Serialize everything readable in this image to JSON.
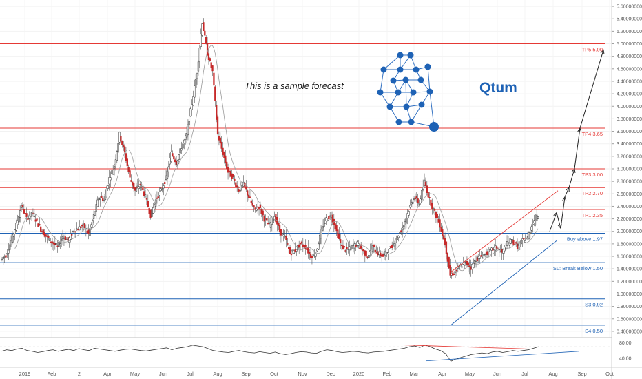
{
  "chart_data": {
    "type": "candlestick",
    "annotation": "This is a sample forecast",
    "logo_text": "Qtum",
    "y_ticks": [
      "0.40000000",
      "0.60000000",
      "0.80000000",
      "1.00000000",
      "1.20000000",
      "1.40000000",
      "1.60000000",
      "1.80000000",
      "2.00000000",
      "2.20000000",
      "2.40000000",
      "2.60000000",
      "2.80000000",
      "3.00000000",
      "3.20000000",
      "3.40000000",
      "3.60000000",
      "3.80000000",
      "4.00000000",
      "4.20000000",
      "4.40000000",
      "4.60000000",
      "4.80000000",
      "5.00000000",
      "5.20000000",
      "5.40000000",
      "5.60000000"
    ],
    "ylim": [
      0.3,
      5.7
    ],
    "x_ticks": [
      "2019",
      "Feb",
      "2",
      "Apr",
      "May",
      "Jun",
      "Jul",
      "Aug",
      "Sep",
      "Oct",
      "Nov",
      "Dec",
      "2020",
      "Feb",
      "Mar",
      "Apr",
      "May",
      "Jun",
      "Jul",
      "Aug",
      "Sep",
      "Oct"
    ],
    "levels": [
      {
        "label": "TP5 5.00",
        "value": 5.0,
        "color": "#e53935"
      },
      {
        "label": "TP4 3.65",
        "value": 3.65,
        "color": "#e53935"
      },
      {
        "label": "TP3 3.00",
        "value": 3.0,
        "color": "#e53935"
      },
      {
        "label": "TP2 2.70",
        "value": 2.7,
        "color": "#e53935"
      },
      {
        "label": "TP1 2.35",
        "value": 2.35,
        "color": "#e53935"
      },
      {
        "label": "Buy above 1.97",
        "value": 1.97,
        "color": "#1e62b5"
      },
      {
        "label": "SL: Break Below 1.50",
        "value": 1.5,
        "color": "#1e62b5"
      },
      {
        "label": "S3 0.92",
        "value": 0.92,
        "color": "#1e62b5"
      },
      {
        "label": "S4 0.50",
        "value": 0.5,
        "color": "#1e62b5"
      }
    ],
    "price_path": [
      [
        0,
        1.55
      ],
      [
        1,
        1.62
      ],
      [
        2,
        1.85
      ],
      [
        3,
        2.1
      ],
      [
        4,
        2.42
      ],
      [
        5,
        2.2
      ],
      [
        6,
        2.3
      ],
      [
        7,
        2.15
      ],
      [
        8,
        2.0
      ],
      [
        9,
        1.9
      ],
      [
        10,
        1.82
      ],
      [
        11,
        1.75
      ],
      [
        12,
        1.92
      ],
      [
        13,
        1.85
      ],
      [
        14,
        2.0
      ],
      [
        15,
        2.05
      ],
      [
        16,
        2.1
      ],
      [
        17,
        1.95
      ],
      [
        18,
        2.25
      ],
      [
        19,
        2.55
      ],
      [
        20,
        2.5
      ],
      [
        21,
        2.85
      ],
      [
        22,
        3.05
      ],
      [
        23,
        3.55
      ],
      [
        24,
        3.25
      ],
      [
        25,
        2.85
      ],
      [
        26,
        2.65
      ],
      [
        27,
        2.75
      ],
      [
        28,
        2.55
      ],
      [
        29,
        2.25
      ],
      [
        30,
        2.5
      ],
      [
        31,
        2.65
      ],
      [
        32,
        2.85
      ],
      [
        33,
        3.25
      ],
      [
        34,
        3.1
      ],
      [
        35,
        3.35
      ],
      [
        36,
        3.55
      ],
      [
        37,
        4.05
      ],
      [
        38,
        4.55
      ],
      [
        39,
        5.35
      ],
      [
        40,
        4.85
      ],
      [
        41,
        4.55
      ],
      [
        42,
        3.55
      ],
      [
        43,
        3.25
      ],
      [
        44,
        2.95
      ],
      [
        45,
        2.85
      ],
      [
        46,
        2.65
      ],
      [
        47,
        2.75
      ],
      [
        48,
        2.55
      ],
      [
        49,
        2.35
      ],
      [
        50,
        2.4
      ],
      [
        51,
        2.2
      ],
      [
        52,
        2.1
      ],
      [
        53,
        2.25
      ],
      [
        54,
        2.0
      ],
      [
        55,
        1.9
      ],
      [
        56,
        1.65
      ],
      [
        57,
        1.7
      ],
      [
        58,
        1.8
      ],
      [
        59,
        1.75
      ],
      [
        60,
        1.6
      ],
      [
        61,
        1.65
      ],
      [
        62,
        2.0
      ],
      [
        63,
        2.2
      ],
      [
        64,
        2.25
      ],
      [
        65,
        2.0
      ],
      [
        66,
        1.75
      ],
      [
        67,
        1.7
      ],
      [
        68,
        1.75
      ],
      [
        69,
        1.8
      ],
      [
        70,
        1.7
      ],
      [
        71,
        1.6
      ],
      [
        72,
        1.75
      ],
      [
        73,
        1.65
      ],
      [
        74,
        1.6
      ],
      [
        75,
        1.7
      ],
      [
        76,
        1.8
      ],
      [
        77,
        1.95
      ],
      [
        78,
        2.1
      ],
      [
        79,
        2.35
      ],
      [
        80,
        2.55
      ],
      [
        81,
        2.45
      ],
      [
        82,
        2.8
      ],
      [
        83,
        2.5
      ],
      [
        84,
        2.3
      ],
      [
        85,
        2.1
      ],
      [
        86,
        1.8
      ],
      [
        87,
        1.3
      ],
      [
        88,
        1.35
      ],
      [
        89,
        1.45
      ],
      [
        90,
        1.5
      ],
      [
        91,
        1.42
      ],
      [
        92,
        1.55
      ],
      [
        93,
        1.6
      ],
      [
        94,
        1.65
      ],
      [
        95,
        1.7
      ],
      [
        96,
        1.75
      ],
      [
        97,
        1.65
      ],
      [
        98,
        1.8
      ],
      [
        99,
        1.85
      ],
      [
        100,
        1.75
      ],
      [
        101,
        1.85
      ],
      [
        102,
        1.9
      ],
      [
        103,
        2.15
      ],
      [
        104,
        2.25
      ]
    ],
    "forecast_path": [
      2.0,
      2.3,
      2.05,
      2.55,
      2.7,
      3.0,
      3.65,
      4.9
    ],
    "rsi": {
      "ylim": [
        20,
        90
      ],
      "y_ticks": [
        "80.00",
        "40.00"
      ],
      "values": [
        58,
        62,
        60,
        64,
        66,
        60,
        58,
        55,
        57,
        60,
        62,
        58,
        61,
        63,
        60,
        65,
        62,
        60,
        66,
        64,
        62,
        60,
        58,
        61,
        63,
        64,
        62,
        60,
        59,
        61,
        63,
        65,
        67,
        62,
        66,
        68,
        70,
        74,
        72,
        70,
        65,
        60,
        58,
        56,
        55,
        58,
        60,
        57,
        55,
        54,
        57,
        55,
        53,
        56,
        52,
        50,
        52,
        55,
        57,
        56,
        54,
        53,
        58,
        62,
        60,
        57,
        55,
        56,
        58,
        57,
        55,
        54,
        56,
        57,
        58,
        60,
        62,
        64,
        66,
        70,
        72,
        68,
        75,
        70,
        64,
        60,
        52,
        32,
        38,
        42,
        46,
        50,
        52,
        54,
        52,
        56,
        58,
        55,
        57,
        60,
        58,
        60,
        62,
        66,
        70
      ]
    }
  }
}
